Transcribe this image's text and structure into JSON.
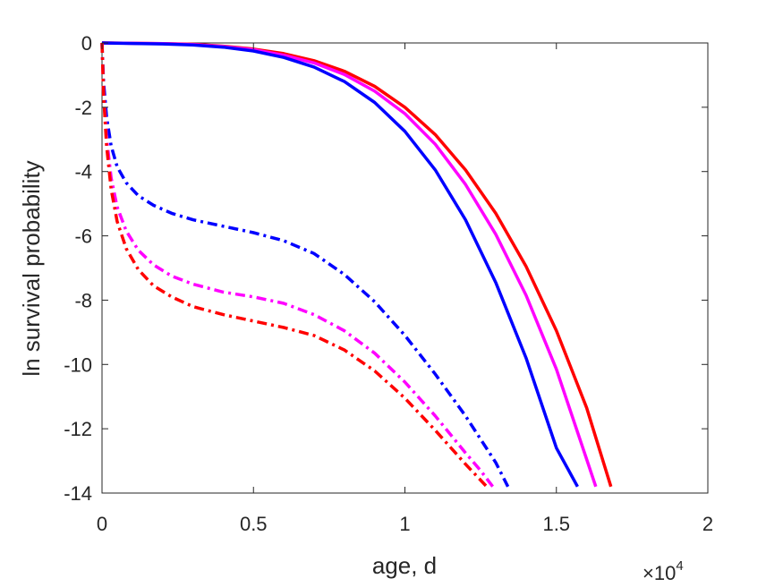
{
  "chart_data": {
    "type": "line",
    "xlabel": "age, d",
    "ylabel": "ln survival probability",
    "x_exponent": {
      "base": "×10",
      "power": "4"
    },
    "xlim": [
      0,
      20000
    ],
    "ylim": [
      -14,
      0
    ],
    "xticks": [
      0,
      5000,
      10000,
      15000,
      20000
    ],
    "xtick_labels": [
      "0",
      "0.5",
      "1",
      "1.5",
      "2"
    ],
    "yticks": [
      0,
      -2,
      -4,
      -6,
      -8,
      -10,
      -12,
      -14
    ],
    "ytick_labels": [
      "0",
      "-2",
      "-4",
      "-6",
      "-8",
      "-10",
      "-12",
      "-14"
    ],
    "grid": false,
    "series": [
      {
        "style": "solid",
        "color": "#ff0000",
        "x": [
          0,
          2000,
          3000,
          4000,
          5000,
          6000,
          7000,
          8000,
          9000,
          10000,
          11000,
          12000,
          13000,
          14000,
          15000,
          16000,
          16800
        ],
        "y": [
          0,
          -0.02,
          -0.04,
          -0.1,
          -0.19,
          -0.33,
          -0.55,
          -0.88,
          -1.35,
          -2.0,
          -2.85,
          -3.95,
          -5.3,
          -6.95,
          -8.95,
          -11.35,
          -13.8
        ]
      },
      {
        "style": "solid",
        "color": "#ff00ff",
        "x": [
          0,
          2000,
          3000,
          4000,
          5000,
          6000,
          7000,
          8000,
          9000,
          10000,
          11000,
          12000,
          13000,
          14000,
          15000,
          16000,
          16300
        ],
        "y": [
          0,
          -0.02,
          -0.05,
          -0.11,
          -0.21,
          -0.38,
          -0.62,
          -0.98,
          -1.5,
          -2.2,
          -3.15,
          -4.4,
          -5.95,
          -7.85,
          -10.15,
          -12.95,
          -13.8
        ]
      },
      {
        "style": "solid",
        "color": "#0000ff",
        "x": [
          0,
          2000,
          3000,
          4000,
          5000,
          6000,
          7000,
          8000,
          9000,
          10000,
          11000,
          12000,
          13000,
          14000,
          15000,
          15700
        ],
        "y": [
          0,
          -0.03,
          -0.06,
          -0.13,
          -0.25,
          -0.45,
          -0.75,
          -1.2,
          -1.85,
          -2.75,
          -3.95,
          -5.5,
          -7.45,
          -9.8,
          -12.6,
          -13.8
        ]
      },
      {
        "style": "dashdot",
        "color": "#0000ff",
        "x": [
          0,
          50,
          150,
          300,
          500,
          800,
          1200,
          1700,
          2300,
          3000,
          4000,
          5000,
          6000,
          7000,
          8000,
          9000,
          10000,
          11000,
          12000,
          13000,
          13400
        ],
        "y": [
          0,
          -1.2,
          -2.3,
          -3.2,
          -3.85,
          -4.35,
          -4.75,
          -5.05,
          -5.3,
          -5.5,
          -5.7,
          -5.9,
          -6.15,
          -6.55,
          -7.2,
          -8.05,
          -9.1,
          -10.3,
          -11.6,
          -13.05,
          -13.8
        ]
      },
      {
        "style": "dashdot",
        "color": "#ff00ff",
        "x": [
          0,
          50,
          150,
          300,
          500,
          800,
          1200,
          1700,
          2300,
          3000,
          4000,
          5000,
          6000,
          7000,
          8000,
          9000,
          10000,
          11000,
          12000,
          12500,
          12900
        ],
        "y": [
          0,
          -1.5,
          -2.95,
          -4.2,
          -5.1,
          -5.85,
          -6.45,
          -6.9,
          -7.25,
          -7.5,
          -7.75,
          -7.9,
          -8.1,
          -8.45,
          -8.95,
          -9.65,
          -10.55,
          -11.6,
          -12.75,
          -13.3,
          -13.8
        ]
      },
      {
        "style": "dashdot",
        "color": "#ff0000",
        "x": [
          0,
          50,
          150,
          300,
          500,
          800,
          1200,
          1700,
          2300,
          3000,
          4000,
          5000,
          6000,
          7000,
          8000,
          9000,
          10000,
          11000,
          12000,
          12400,
          12700
        ],
        "y": [
          0,
          -1.6,
          -3.2,
          -4.55,
          -5.55,
          -6.4,
          -7.05,
          -7.55,
          -7.9,
          -8.2,
          -8.45,
          -8.65,
          -8.85,
          -9.1,
          -9.55,
          -10.2,
          -11.05,
          -12.05,
          -13.1,
          -13.5,
          -13.8
        ]
      }
    ]
  }
}
